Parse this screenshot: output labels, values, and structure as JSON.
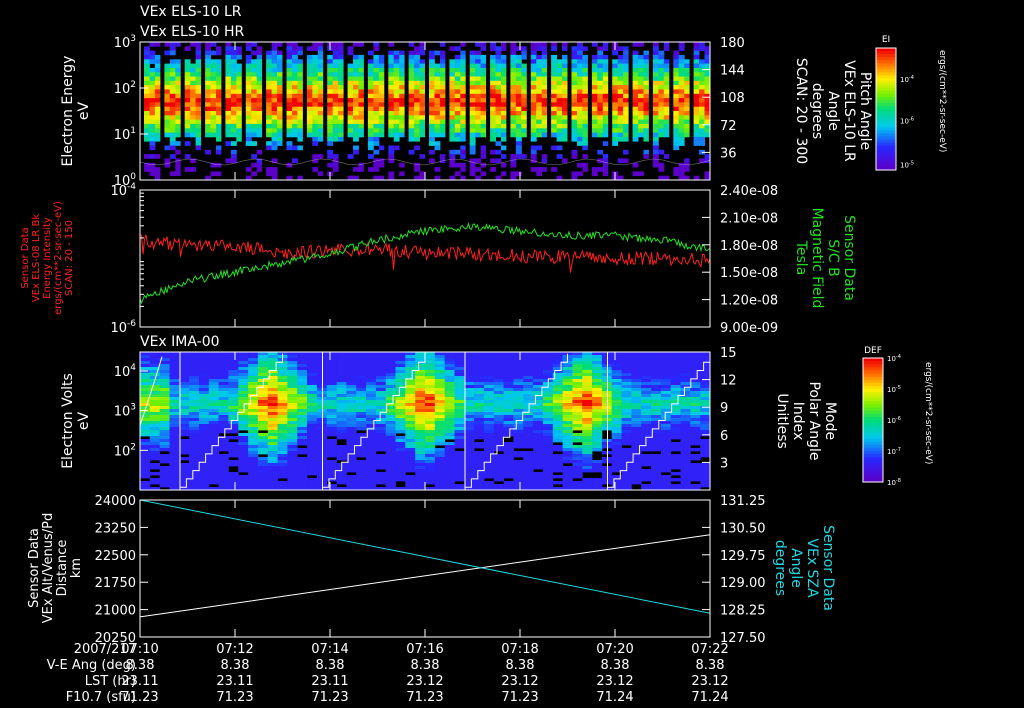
{
  "header": {
    "title_lr": "VEx ELS-10 LR",
    "title_hr": "VEx ELS-10 HR"
  },
  "colors": {
    "background": "#000000",
    "foreground": "#ffffff",
    "red_series": "#ff2020",
    "green_series": "#20e020",
    "cyan_series": "#20d8e0"
  },
  "chart_data": [
    {
      "type": "heatmap",
      "panel": "els-spectrogram",
      "title": "VEx ELS-10 LR / VEx ELS-10 HR",
      "ylabel": [
        "Electron Energy",
        "eV"
      ],
      "y_scale": "log",
      "ylim": [
        1,
        1000
      ],
      "y_ticks": [
        "10^0",
        "10^1",
        "10^2",
        "10^3"
      ],
      "ylabel_right": [
        "Pitch Angle",
        "VEx ELS-10 LR",
        "Angle",
        "degrees",
        "SCAN: 20 - 300"
      ],
      "y2_ticks": [
        "36",
        "72",
        "108",
        "144",
        "180"
      ],
      "y2lim": [
        0,
        180
      ],
      "colorbar": {
        "label": "EI",
        "units": "ergs/(cm**2-sr-sec-eV)",
        "ticks": [
          "10^-5",
          "10^-6",
          "10^-4"
        ]
      },
      "peak_energy_eV": 50,
      "scan_count": 28
    },
    {
      "type": "line",
      "panel": "intensity-and-field",
      "ylabel_left": [
        "Sensor Data",
        "VEx ELS-08 LR Bk",
        "Energy Intensity",
        "ergs/(cm**2-sr-sec-eV)",
        "SCAN: 20 - 150"
      ],
      "y_scale": "log",
      "ylim": [
        1e-06,
        0.0001
      ],
      "y_ticks": [
        "10^-6",
        "10^-4"
      ],
      "ylabel_right": [
        "Sensor Data",
        "S/C B",
        "Magnetic Field",
        "Tesla"
      ],
      "y2lim": [
        9e-09,
        2.4e-08
      ],
      "y2_ticks": [
        "9.00e-09",
        "1.20e-08",
        "1.50e-08",
        "1.80e-08",
        "2.10e-08",
        "2.40e-08"
      ],
      "series": [
        {
          "name": "VEx ELS-08 LR Bk",
          "axis": "left",
          "color": "red",
          "x": [
            "07:10",
            "07:11",
            "07:12",
            "07:13",
            "07:14",
            "07:15",
            "07:16",
            "07:17",
            "07:18",
            "07:19",
            "07:20",
            "07:21",
            "07:22"
          ],
          "values": [
            1.8e-05,
            1.6e-05,
            1.5e-05,
            1.2e-05,
            1.3e-05,
            1.4e-05,
            1.2e-05,
            1.15e-05,
            1.1e-05,
            1.05e-05,
            1e-05,
            1e-05,
            9.5e-06
          ]
        },
        {
          "name": "S/C B",
          "axis": "right",
          "color": "green",
          "x": [
            "07:10",
            "07:11",
            "07:12",
            "07:13",
            "07:14",
            "07:15",
            "07:16",
            "07:17",
            "07:18",
            "07:19",
            "07:20",
            "07:21",
            "07:22"
          ],
          "values": [
            1.2e-08,
            1.4e-08,
            1.5e-08,
            1.6e-08,
            1.7e-08,
            1.85e-08,
            1.95e-08,
            2e-08,
            1.95e-08,
            1.9e-08,
            1.9e-08,
            1.85e-08,
            1.75e-08
          ]
        }
      ]
    },
    {
      "type": "heatmap",
      "panel": "ima-spectrogram",
      "title": "VEx IMA-00",
      "ylabel": [
        "Electron Volts",
        "eV"
      ],
      "y_scale": "log",
      "ylim": [
        10,
        30000
      ],
      "y_ticks": [
        "10^2",
        "10^3",
        "10^4"
      ],
      "ylabel_right": [
        "Mode",
        "Polar Angle",
        "Index",
        "Unitless"
      ],
      "y2lim": [
        0,
        15
      ],
      "y2_ticks": [
        "3",
        "6",
        "9",
        "12",
        "15"
      ],
      "colorbar": {
        "label": "DEF",
        "units": "ergs/(cm**2-sr-sec-eV)",
        "ticks": [
          "10^-4",
          "10^-5",
          "10^-6",
          "10^-7",
          "10^-8"
        ]
      },
      "peak_energy_eV": 1500,
      "polar_index_cycles": 4
    },
    {
      "type": "line",
      "panel": "altitude-and-sza",
      "ylabel_left": [
        "Sensor Data",
        "VEx Alt/Venus/Pd",
        "Distance",
        "km"
      ],
      "ylim": [
        20250,
        24000
      ],
      "y_ticks": [
        "20250",
        "21000",
        "21750",
        "22500",
        "23250",
        "24000"
      ],
      "ylabel_right": [
        "Sensor Data",
        "VEx SZA",
        "Angle",
        "degrees"
      ],
      "y2lim": [
        127.5,
        131.25
      ],
      "y2_ticks": [
        "127.50",
        "128.25",
        "129.00",
        "129.75",
        "130.50",
        "131.25"
      ],
      "series": [
        {
          "name": "VEx Alt/Venus/Pd",
          "axis": "left",
          "color": "white",
          "x": [
            "07:10",
            "07:22"
          ],
          "values": [
            20800,
            23050
          ]
        },
        {
          "name": "VEx SZA",
          "axis": "right",
          "color": "cyan",
          "x": [
            "07:10",
            "07:22"
          ],
          "values": [
            131.25,
            128.15
          ]
        }
      ]
    }
  ],
  "x_axis": {
    "date": "2007/217",
    "ticks": [
      "07:10",
      "07:12",
      "07:14",
      "07:16",
      "07:18",
      "07:20",
      "07:22"
    ]
  },
  "ephemeris": [
    {
      "label": "V-E Ang (deg)",
      "values": [
        "8.38",
        "8.38",
        "8.38",
        "8.38",
        "8.38",
        "8.38",
        "8.38"
      ]
    },
    {
      "label": "LST (hr)",
      "values": [
        "23.11",
        "23.11",
        "23.11",
        "23.12",
        "23.12",
        "23.12",
        "23.12"
      ]
    },
    {
      "label": "F10.7 (sfu)",
      "values": [
        "71.23",
        "71.23",
        "71.23",
        "71.23",
        "71.23",
        "71.24",
        "71.24"
      ]
    }
  ]
}
